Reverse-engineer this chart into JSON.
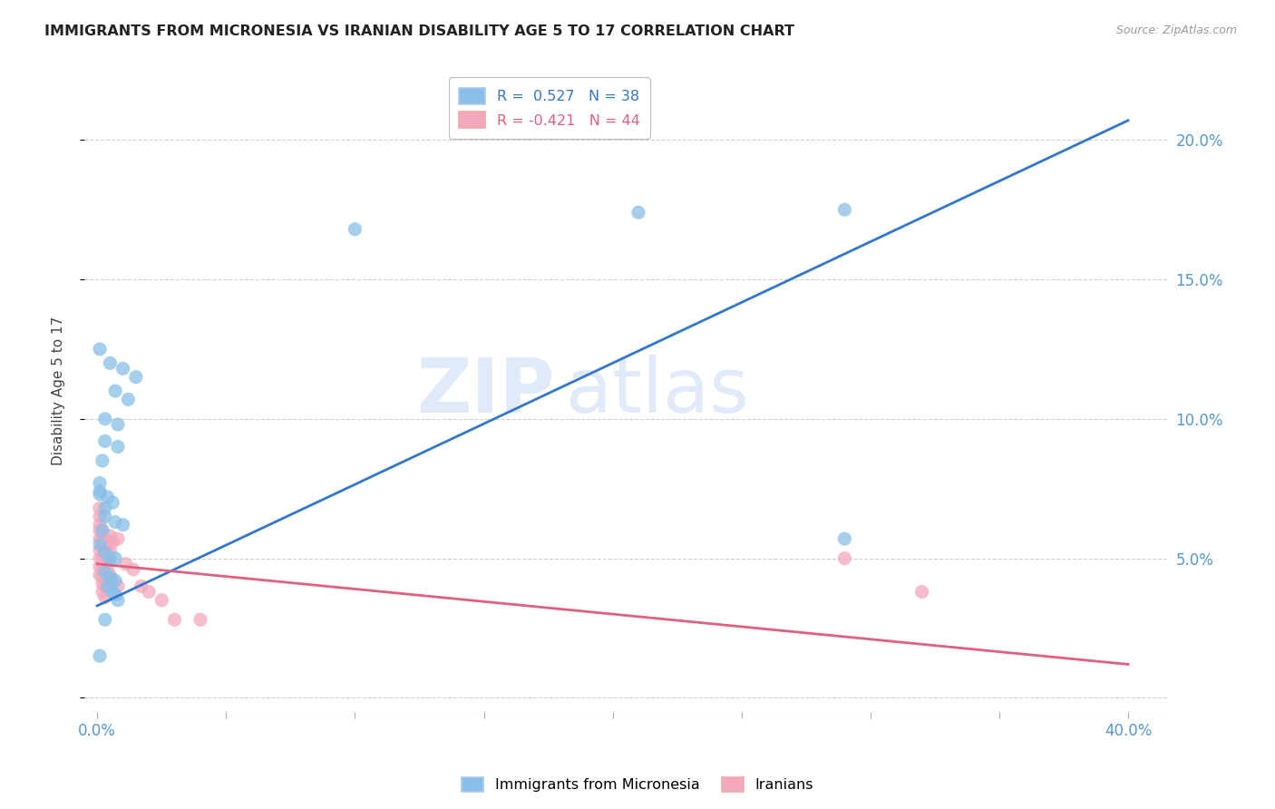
{
  "title": "IMMIGRANTS FROM MICRONESIA VS IRANIAN DISABILITY AGE 5 TO 17 CORRELATION CHART",
  "source": "Source: ZipAtlas.com",
  "ylabel": "Disability Age 5 to 17",
  "watermark_left": "ZIP",
  "watermark_right": "atlas",
  "legend_blue_r": "R =  0.527",
  "legend_blue_n": "N = 38",
  "legend_pink_r": "R = -0.421",
  "legend_pink_n": "N = 44",
  "blue_label": "Immigrants from Micronesia",
  "pink_label": "Iranians",
  "blue_color": "#89bfe8",
  "pink_color": "#f4a8bc",
  "blue_line_color": "#3377cc",
  "pink_line_color": "#e06080",
  "blue_scatter": [
    [
      0.001,
      0.125
    ],
    [
      0.005,
      0.12
    ],
    [
      0.01,
      0.118
    ],
    [
      0.015,
      0.115
    ],
    [
      0.007,
      0.11
    ],
    [
      0.012,
      0.107
    ],
    [
      0.003,
      0.1
    ],
    [
      0.008,
      0.098
    ],
    [
      0.003,
      0.092
    ],
    [
      0.002,
      0.085
    ],
    [
      0.008,
      0.09
    ],
    [
      0.001,
      0.077
    ],
    [
      0.001,
      0.074
    ],
    [
      0.004,
      0.072
    ],
    [
      0.006,
      0.07
    ],
    [
      0.003,
      0.068
    ],
    [
      0.003,
      0.065
    ],
    [
      0.002,
      0.06
    ],
    [
      0.007,
      0.063
    ],
    [
      0.01,
      0.062
    ],
    [
      0.001,
      0.055
    ],
    [
      0.003,
      0.052
    ],
    [
      0.005,
      0.05
    ],
    [
      0.007,
      0.05
    ],
    [
      0.001,
      0.073
    ],
    [
      0.003,
      0.045
    ],
    [
      0.005,
      0.043
    ],
    [
      0.007,
      0.042
    ],
    [
      0.004,
      0.04
    ],
    [
      0.006,
      0.038
    ],
    [
      0.007,
      0.037
    ],
    [
      0.008,
      0.035
    ],
    [
      0.003,
      0.028
    ],
    [
      0.001,
      0.015
    ],
    [
      0.1,
      0.168
    ],
    [
      0.21,
      0.174
    ],
    [
      0.29,
      0.175
    ],
    [
      0.29,
      0.057
    ]
  ],
  "pink_scatter": [
    [
      0.001,
      0.068
    ],
    [
      0.001,
      0.065
    ],
    [
      0.001,
      0.062
    ],
    [
      0.001,
      0.06
    ],
    [
      0.001,
      0.057
    ],
    [
      0.001,
      0.053
    ],
    [
      0.001,
      0.05
    ],
    [
      0.001,
      0.047
    ],
    [
      0.001,
      0.044
    ],
    [
      0.002,
      0.06
    ],
    [
      0.002,
      0.057
    ],
    [
      0.002,
      0.054
    ],
    [
      0.002,
      0.05
    ],
    [
      0.002,
      0.047
    ],
    [
      0.002,
      0.044
    ],
    [
      0.002,
      0.041
    ],
    [
      0.002,
      0.038
    ],
    [
      0.003,
      0.057
    ],
    [
      0.003,
      0.053
    ],
    [
      0.003,
      0.05
    ],
    [
      0.003,
      0.046
    ],
    [
      0.003,
      0.043
    ],
    [
      0.003,
      0.04
    ],
    [
      0.003,
      0.036
    ],
    [
      0.004,
      0.054
    ],
    [
      0.004,
      0.05
    ],
    [
      0.004,
      0.046
    ],
    [
      0.004,
      0.043
    ],
    [
      0.005,
      0.058
    ],
    [
      0.005,
      0.053
    ],
    [
      0.005,
      0.044
    ],
    [
      0.006,
      0.056
    ],
    [
      0.006,
      0.042
    ],
    [
      0.008,
      0.057
    ],
    [
      0.008,
      0.04
    ],
    [
      0.011,
      0.048
    ],
    [
      0.014,
      0.046
    ],
    [
      0.017,
      0.04
    ],
    [
      0.02,
      0.038
    ],
    [
      0.025,
      0.035
    ],
    [
      0.03,
      0.028
    ],
    [
      0.04,
      0.028
    ],
    [
      0.29,
      0.05
    ],
    [
      0.32,
      0.038
    ]
  ],
  "blue_line_x": [
    0.0,
    0.4
  ],
  "blue_line_y": [
    0.033,
    0.207
  ],
  "pink_line_x": [
    0.0,
    0.4
  ],
  "pink_line_y": [
    0.048,
    0.012
  ],
  "xlim": [
    -0.005,
    0.415
  ],
  "ylim": [
    -0.005,
    0.225
  ],
  "yticks": [
    0.0,
    0.05,
    0.1,
    0.15,
    0.2
  ],
  "yticklabels_right": [
    "",
    "5.0%",
    "10.0%",
    "15.0%",
    "20.0%"
  ],
  "xtick_positions": [
    0.0,
    0.05,
    0.1,
    0.15,
    0.2,
    0.25,
    0.3,
    0.35,
    0.4
  ],
  "background_color": "#ffffff",
  "grid_color": "#cccccc"
}
